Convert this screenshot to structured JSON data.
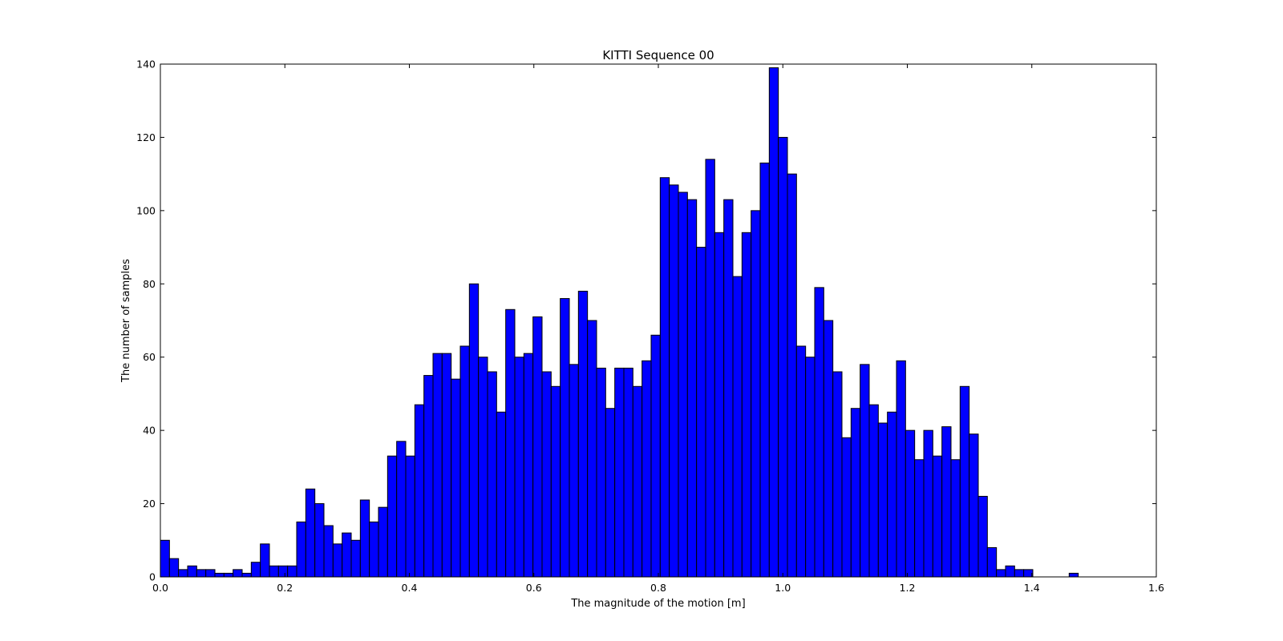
{
  "chart_data": {
    "type": "bar",
    "title": "KITTI Sequence 00",
    "xlabel": "The magnitude of the motion [m]",
    "ylabel": "The number of samples",
    "xlim": [
      0.0,
      1.6
    ],
    "ylim": [
      0,
      140
    ],
    "x_ticks": [
      "0.0",
      "0.2",
      "0.4",
      "0.6",
      "0.8",
      "1.0",
      "1.2",
      "1.4",
      "1.6"
    ],
    "y_ticks": [
      "0",
      "20",
      "40",
      "60",
      "80",
      "100",
      "120",
      "140"
    ],
    "grid": false,
    "bar_color": "#0000ff",
    "edge_color": "#000000",
    "bin_width": 0.0146,
    "bin_start": 0.0,
    "values": [
      10,
      5,
      2,
      3,
      2,
      2,
      1,
      1,
      2,
      1,
      4,
      9,
      3,
      3,
      3,
      15,
      24,
      20,
      14,
      9,
      12,
      10,
      21,
      15,
      19,
      33,
      37,
      33,
      47,
      55,
      61,
      61,
      54,
      63,
      80,
      60,
      56,
      45,
      73,
      60,
      61,
      71,
      56,
      52,
      76,
      58,
      78,
      70,
      57,
      46,
      57,
      57,
      52,
      59,
      66,
      109,
      107,
      105,
      103,
      90,
      114,
      94,
      103,
      82,
      94,
      100,
      113,
      139,
      120,
      110,
      63,
      60,
      79,
      70,
      56,
      38,
      46,
      58,
      47,
      42,
      45,
      59,
      40,
      32,
      40,
      33,
      41,
      32,
      52,
      39,
      22,
      8,
      2,
      3,
      2,
      2,
      0,
      0,
      0,
      0,
      1
    ]
  }
}
